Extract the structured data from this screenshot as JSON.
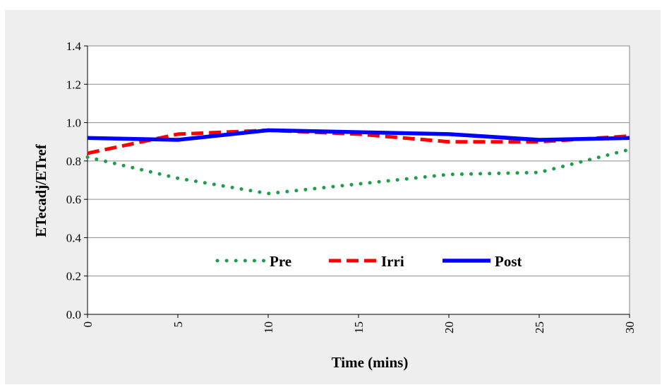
{
  "chart_data": {
    "type": "line",
    "xlabel": "Time (mins)",
    "ylabel": "ETecadj/ETref",
    "xlim": [
      0,
      30
    ],
    "ylim": [
      0,
      1.4
    ],
    "xticks": [
      "0",
      "5",
      "10",
      "15",
      "20",
      "25",
      "30"
    ],
    "yticks": [
      "0.0",
      "0.2",
      "0.4",
      "0.6",
      "0.8",
      "1.0",
      "1.2",
      "1.4"
    ],
    "grid": "horizontal",
    "legend_placement": "inside-bottom-center",
    "x": [
      0,
      5,
      10,
      15,
      20,
      25,
      30
    ],
    "series": [
      {
        "name": "Pre",
        "values": [
          0.82,
          0.71,
          0.63,
          0.68,
          0.73,
          0.74,
          0.86
        ],
        "color": "#1e9e4a",
        "style": "dotted"
      },
      {
        "name": "Irri",
        "values": [
          0.84,
          0.94,
          0.96,
          0.94,
          0.9,
          0.9,
          0.93
        ],
        "color": "#ff0000",
        "style": "dashed"
      },
      {
        "name": "Post",
        "values": [
          0.92,
          0.91,
          0.96,
          0.95,
          0.94,
          0.91,
          0.92
        ],
        "color": "#0000ff",
        "style": "solid"
      }
    ]
  }
}
